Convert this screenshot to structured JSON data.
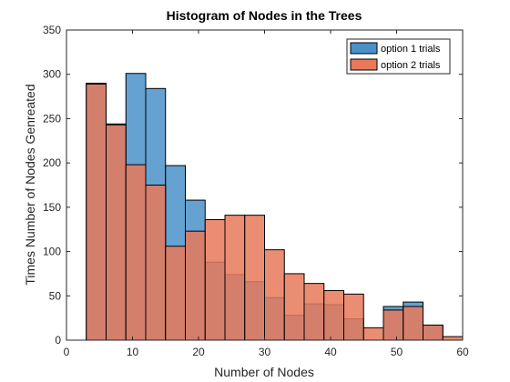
{
  "chart_data": {
    "type": "histogram",
    "title": "Histogram of Nodes in the Trees",
    "xlabel": "Number of Nodes",
    "ylabel": "Times Number of Nodes Genreated",
    "xlim": [
      0,
      60
    ],
    "ylim": [
      0,
      350
    ],
    "xticks": [
      0,
      10,
      20,
      30,
      40,
      50,
      60
    ],
    "yticks": [
      0,
      50,
      100,
      150,
      200,
      250,
      300,
      350
    ],
    "bin_edges": [
      3,
      6,
      9,
      12,
      15,
      18,
      21,
      24,
      27,
      30,
      33,
      36,
      39,
      42,
      45,
      48,
      51,
      54,
      57,
      60
    ],
    "series": [
      {
        "name": "option 1 trials",
        "color": "#4a90c9",
        "values": [
          290,
          244,
          301,
          284,
          197,
          158,
          88,
          74,
          66,
          48,
          28,
          41,
          40,
          24,
          0,
          38,
          43,
          17,
          0
        ]
      },
      {
        "name": "option 2 trials",
        "color": "#e8795a",
        "values": [
          289,
          243,
          198,
          175,
          106,
          123,
          136,
          141,
          141,
          102,
          75,
          64,
          56,
          52,
          14,
          34,
          38,
          17,
          4
        ]
      }
    ],
    "legend_position": "top-right",
    "grid": false
  }
}
